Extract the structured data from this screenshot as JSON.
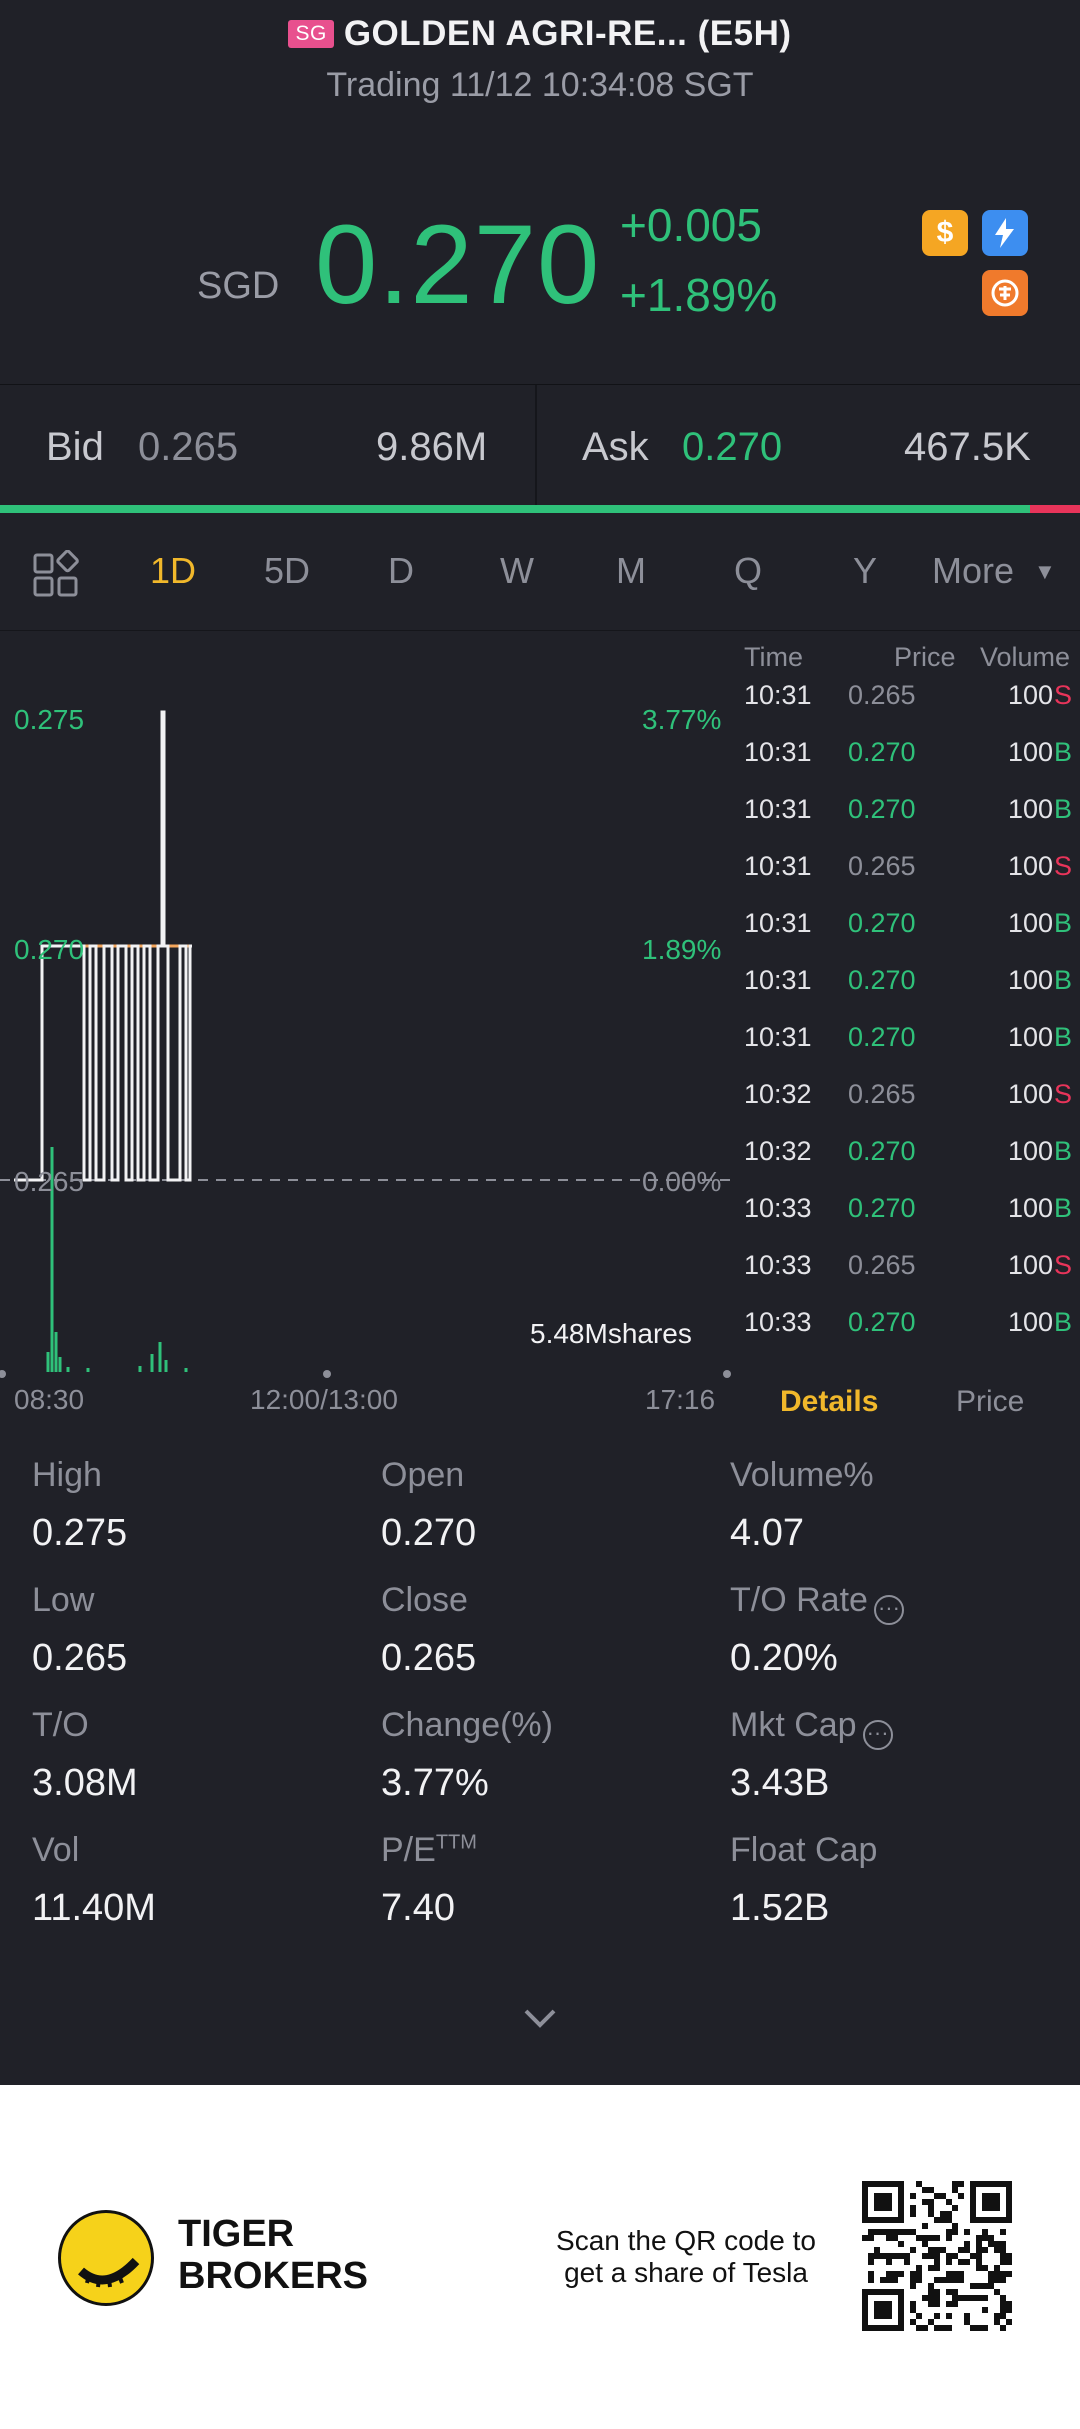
{
  "header": {
    "market_badge": "SG",
    "title": "GOLDEN AGRI-RE... (E5H)",
    "status": "Trading 11/12 10:34:08 SGT",
    "currency": "SGD",
    "price": "0.270",
    "change": "+0.005",
    "change_pct": "+1.89%",
    "icons": [
      "dollar-icon",
      "flash-icon",
      "warrant-icon"
    ]
  },
  "bidask": {
    "bid_label": "Bid",
    "bid_price": "0.265",
    "bid_size": "9.86M",
    "ask_label": "Ask",
    "ask_price": "0.270",
    "ask_size": "467.5K",
    "bid_ratio": 0.954
  },
  "tabs": {
    "items": [
      "1D",
      "5D",
      "D",
      "W",
      "M",
      "Q",
      "Y",
      "More"
    ],
    "active": "1D"
  },
  "chart": {
    "y_labels": [
      "0.275",
      "0.270",
      "0.265"
    ],
    "pct_labels": [
      "3.77%",
      "1.89%",
      "0.00%"
    ],
    "x_labels": [
      "08:30",
      "12:00/13:00",
      "17:16"
    ],
    "volume_label": "5.48Mshares"
  },
  "ticks": {
    "headers": {
      "time": "Time",
      "price": "Price",
      "volume": "Volume"
    },
    "rows": [
      {
        "time": "10:31",
        "price": "0.265",
        "vol": "100",
        "side": "S"
      },
      {
        "time": "10:31",
        "price": "0.270",
        "vol": "100",
        "side": "B"
      },
      {
        "time": "10:31",
        "price": "0.270",
        "vol": "100",
        "side": "B"
      },
      {
        "time": "10:31",
        "price": "0.265",
        "vol": "100",
        "side": "S"
      },
      {
        "time": "10:31",
        "price": "0.270",
        "vol": "100",
        "side": "B"
      },
      {
        "time": "10:31",
        "price": "0.270",
        "vol": "100",
        "side": "B"
      },
      {
        "time": "10:31",
        "price": "0.270",
        "vol": "100",
        "side": "B"
      },
      {
        "time": "10:32",
        "price": "0.265",
        "vol": "100",
        "side": "S"
      },
      {
        "time": "10:32",
        "price": "0.270",
        "vol": "100",
        "side": "B"
      },
      {
        "time": "10:33",
        "price": "0.270",
        "vol": "100",
        "side": "B"
      },
      {
        "time": "10:33",
        "price": "0.265",
        "vol": "100",
        "side": "S"
      },
      {
        "time": "10:33",
        "price": "0.270",
        "vol": "100",
        "side": "B"
      }
    ],
    "tab_details": "Details",
    "tab_price": "Price"
  },
  "stats": {
    "high_label": "High",
    "high": "0.275",
    "open_label": "Open",
    "open": "0.270",
    "volpct_label": "Volume%",
    "volpct": "4.07",
    "low_label": "Low",
    "low": "0.265",
    "close_label": "Close",
    "close": "0.265",
    "torate_label": "T/O Rate",
    "torate": "0.20%",
    "to_label": "T/O",
    "to": "3.08M",
    "change_label": "Change(%)",
    "change": "3.77%",
    "mktcap_label": "Mkt Cap",
    "mktcap": "3.43B",
    "vol_label": "Vol",
    "vol": "11.40M",
    "pe_label": "P/E",
    "pe_sup": "TTM",
    "pe": "7.40",
    "floatcap_label": "Float Cap",
    "floatcap": "1.52B"
  },
  "footer": {
    "brand_line1": "TIGER",
    "brand_line2": "BROKERS",
    "promo_line1": "Scan the QR code to",
    "promo_line2": "get a share of Tesla"
  },
  "colors": {
    "up": "#2fc17a",
    "down": "#e8345a",
    "accent": "#f1b82b",
    "background": "#202128"
  }
}
